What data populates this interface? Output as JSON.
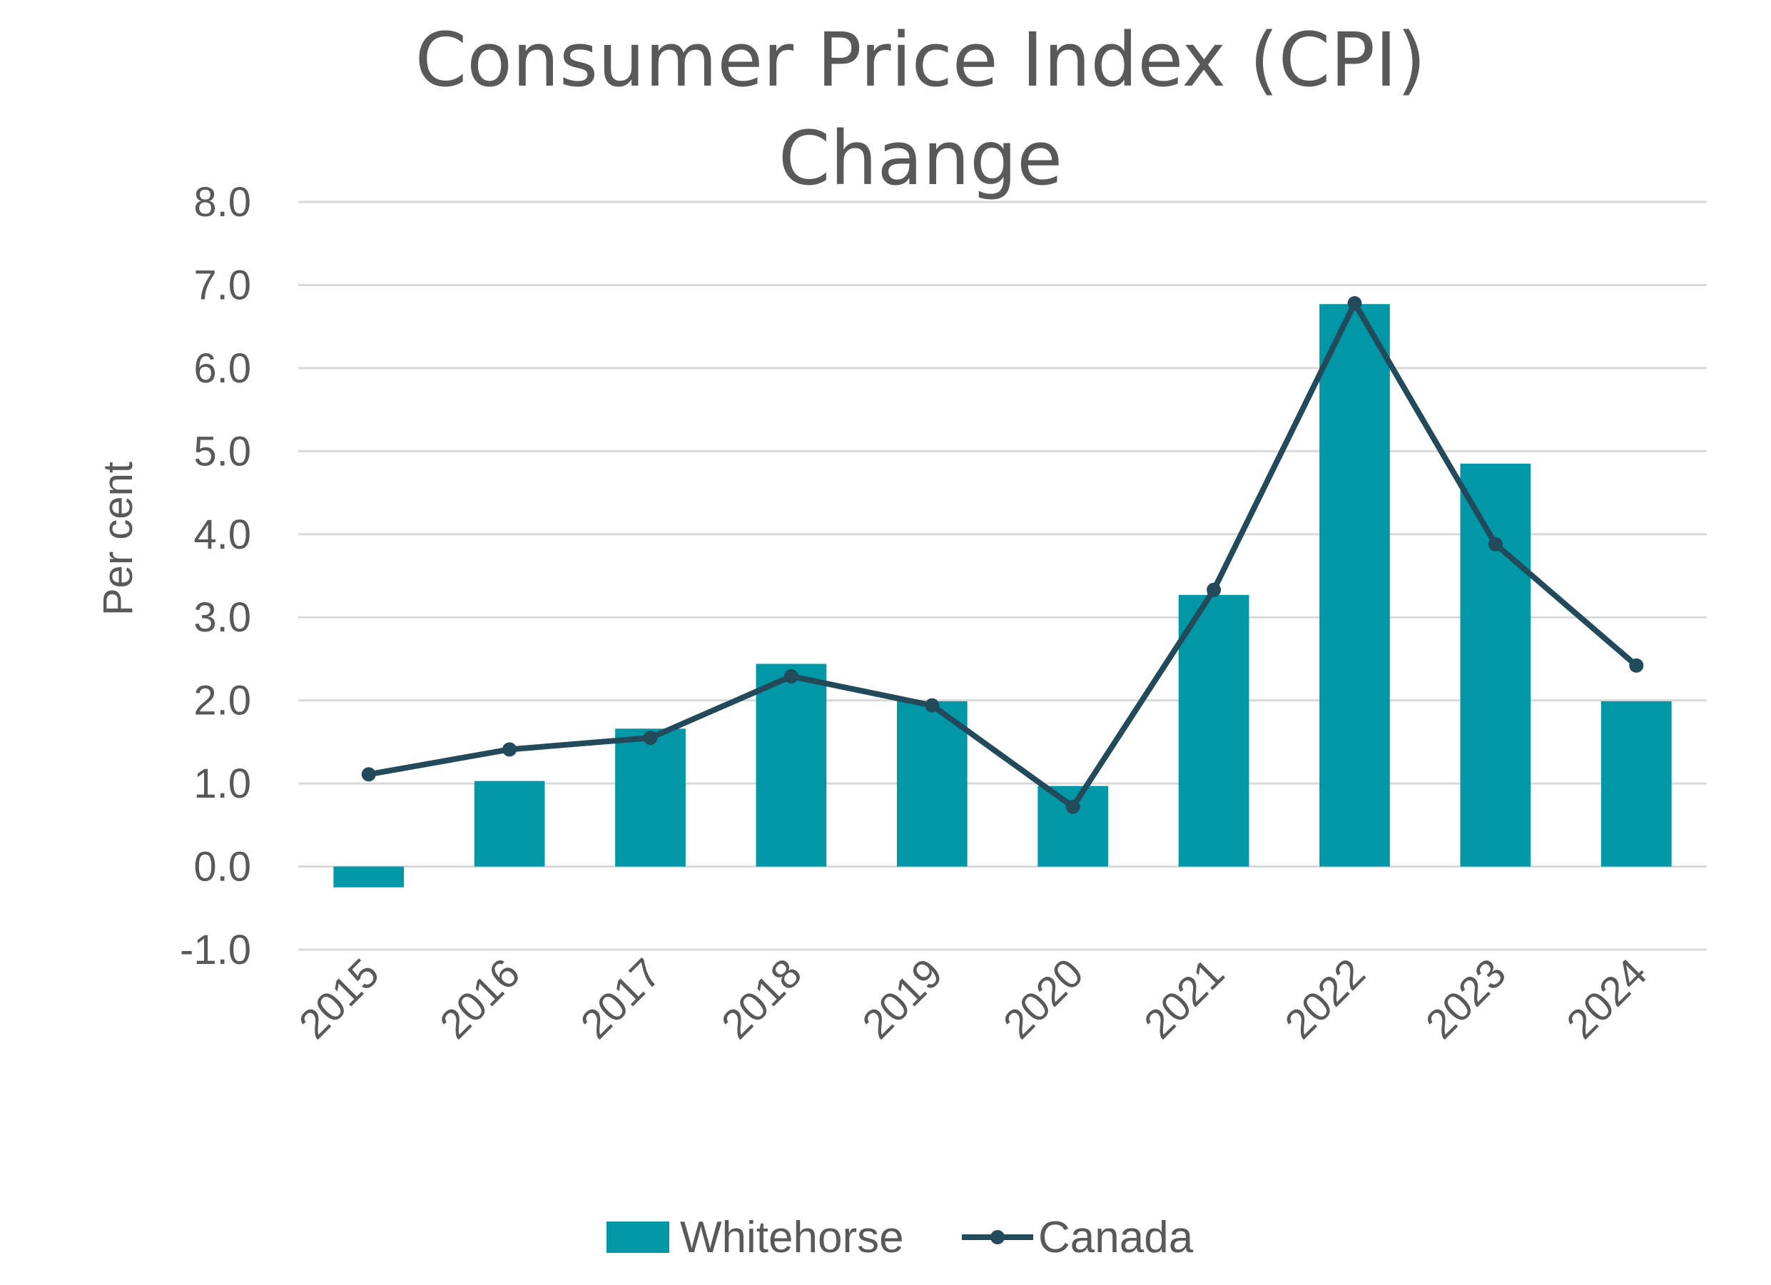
{
  "chart_data": {
    "type": "bar",
    "title_lines": [
      "Consumer Price Index (CPI)",
      "Change"
    ],
    "ylabel": "Per cent",
    "xlabel": "",
    "ylim": [
      -1.0,
      8.0
    ],
    "y_ticks": [
      "8.0",
      "7.0",
      "6.0",
      "5.0",
      "4.0",
      "3.0",
      "2.0",
      "1.0",
      "0.0",
      "-1.0"
    ],
    "categories": [
      "2015",
      "2016",
      "2017",
      "2018",
      "2019",
      "2020",
      "2021",
      "2022",
      "2023",
      "2024"
    ],
    "grid": true,
    "legend_position": "bottom",
    "series": [
      {
        "name": "Whitehorse",
        "kind": "bar",
        "color": "#0097A7",
        "values": [
          -0.25,
          1.03,
          1.66,
          2.44,
          1.99,
          0.97,
          3.27,
          6.77,
          4.85,
          1.99
        ]
      },
      {
        "name": "Canada",
        "kind": "line",
        "color": "#234A5A",
        "values": [
          1.11,
          1.41,
          1.55,
          2.29,
          1.94,
          0.72,
          3.33,
          6.78,
          3.88,
          2.42
        ]
      }
    ]
  }
}
